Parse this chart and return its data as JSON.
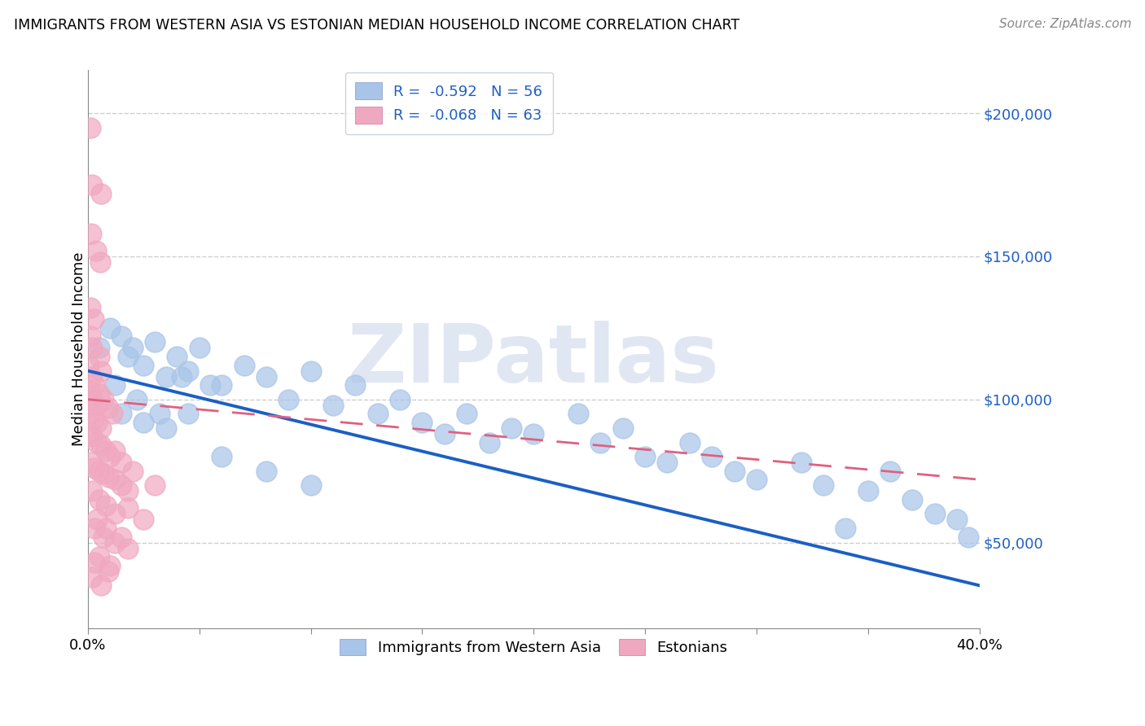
{
  "title": "IMMIGRANTS FROM WESTERN ASIA VS ESTONIAN MEDIAN HOUSEHOLD INCOME CORRELATION CHART",
  "source": "Source: ZipAtlas.com",
  "ylabel": "Median Household Income",
  "watermark": "ZIPatlas",
  "blue_R": "-0.592",
  "blue_N": "56",
  "pink_R": "-0.068",
  "pink_N": "63",
  "blue_color": "#a8c4e8",
  "pink_color": "#f0a8c0",
  "blue_line_color": "#1a5fc4",
  "pink_line_color": "#e06080",
  "legend_text_color": "#2060c0",
  "xmin": 0.0,
  "xmax": 40.0,
  "ymin": 20000,
  "ymax": 215000,
  "yticks": [
    50000,
    100000,
    150000,
    200000
  ],
  "ytick_labels": [
    "$50,000",
    "$100,000",
    "$150,000",
    "$200,000"
  ],
  "blue_line_x0": 0.0,
  "blue_line_y0": 110000,
  "blue_line_x1": 40.0,
  "blue_line_y1": 35000,
  "pink_line_x0": 0.0,
  "pink_line_y0": 100000,
  "pink_line_x1": 40.0,
  "pink_line_y1": 72000,
  "blue_points": [
    [
      0.5,
      118000
    ],
    [
      1.0,
      125000
    ],
    [
      1.5,
      122000
    ],
    [
      1.8,
      115000
    ],
    [
      2.0,
      118000
    ],
    [
      2.5,
      112000
    ],
    [
      3.0,
      120000
    ],
    [
      3.5,
      108000
    ],
    [
      4.0,
      115000
    ],
    [
      4.5,
      110000
    ],
    [
      5.0,
      118000
    ],
    [
      5.5,
      105000
    ],
    [
      1.2,
      105000
    ],
    [
      2.2,
      100000
    ],
    [
      3.2,
      95000
    ],
    [
      4.2,
      108000
    ],
    [
      1.5,
      95000
    ],
    [
      2.5,
      92000
    ],
    [
      3.5,
      90000
    ],
    [
      4.5,
      95000
    ],
    [
      6.0,
      105000
    ],
    [
      7.0,
      112000
    ],
    [
      8.0,
      108000
    ],
    [
      9.0,
      100000
    ],
    [
      10.0,
      110000
    ],
    [
      11.0,
      98000
    ],
    [
      12.0,
      105000
    ],
    [
      13.0,
      95000
    ],
    [
      14.0,
      100000
    ],
    [
      15.0,
      92000
    ],
    [
      16.0,
      88000
    ],
    [
      17.0,
      95000
    ],
    [
      18.0,
      85000
    ],
    [
      19.0,
      90000
    ],
    [
      20.0,
      88000
    ],
    [
      22.0,
      95000
    ],
    [
      23.0,
      85000
    ],
    [
      24.0,
      90000
    ],
    [
      25.0,
      80000
    ],
    [
      26.0,
      78000
    ],
    [
      27.0,
      85000
    ],
    [
      28.0,
      80000
    ],
    [
      29.0,
      75000
    ],
    [
      30.0,
      72000
    ],
    [
      32.0,
      78000
    ],
    [
      33.0,
      70000
    ],
    [
      35.0,
      68000
    ],
    [
      36.0,
      75000
    ],
    [
      37.0,
      65000
    ],
    [
      38.0,
      60000
    ],
    [
      39.0,
      58000
    ],
    [
      39.5,
      52000
    ],
    [
      6.0,
      80000
    ],
    [
      8.0,
      75000
    ],
    [
      10.0,
      70000
    ],
    [
      34.0,
      55000
    ]
  ],
  "pink_points": [
    [
      0.1,
      195000
    ],
    [
      0.2,
      175000
    ],
    [
      0.6,
      172000
    ],
    [
      0.15,
      158000
    ],
    [
      0.35,
      152000
    ],
    [
      0.55,
      148000
    ],
    [
      0.1,
      132000
    ],
    [
      0.25,
      128000
    ],
    [
      0.1,
      122000
    ],
    [
      0.2,
      118000
    ],
    [
      0.5,
      115000
    ],
    [
      0.05,
      112000
    ],
    [
      0.15,
      108000
    ],
    [
      0.3,
      105000
    ],
    [
      0.6,
      110000
    ],
    [
      0.08,
      103000
    ],
    [
      0.2,
      100000
    ],
    [
      0.35,
      98000
    ],
    [
      0.5,
      102000
    ],
    [
      0.7,
      100000
    ],
    [
      0.9,
      97000
    ],
    [
      1.1,
      95000
    ],
    [
      0.1,
      95000
    ],
    [
      0.25,
      93000
    ],
    [
      0.4,
      92000
    ],
    [
      0.6,
      90000
    ],
    [
      0.08,
      88000
    ],
    [
      0.2,
      87000
    ],
    [
      0.4,
      85000
    ],
    [
      0.6,
      84000
    ],
    [
      0.8,
      82000
    ],
    [
      1.0,
      80000
    ],
    [
      1.2,
      82000
    ],
    [
      1.5,
      78000
    ],
    [
      0.15,
      78000
    ],
    [
      0.3,
      76000
    ],
    [
      0.5,
      75000
    ],
    [
      0.7,
      74000
    ],
    [
      0.9,
      73000
    ],
    [
      1.2,
      72000
    ],
    [
      1.5,
      70000
    ],
    [
      1.8,
      68000
    ],
    [
      0.2,
      68000
    ],
    [
      0.5,
      65000
    ],
    [
      0.8,
      63000
    ],
    [
      1.2,
      60000
    ],
    [
      1.8,
      62000
    ],
    [
      2.5,
      58000
    ],
    [
      0.3,
      55000
    ],
    [
      0.7,
      52000
    ],
    [
      1.2,
      50000
    ],
    [
      1.8,
      48000
    ],
    [
      0.5,
      45000
    ],
    [
      1.0,
      42000
    ],
    [
      0.2,
      38000
    ],
    [
      0.6,
      35000
    ],
    [
      2.0,
      75000
    ],
    [
      3.0,
      70000
    ],
    [
      0.4,
      58000
    ],
    [
      0.8,
      55000
    ],
    [
      1.5,
      52000
    ],
    [
      0.3,
      43000
    ],
    [
      0.9,
      40000
    ]
  ]
}
